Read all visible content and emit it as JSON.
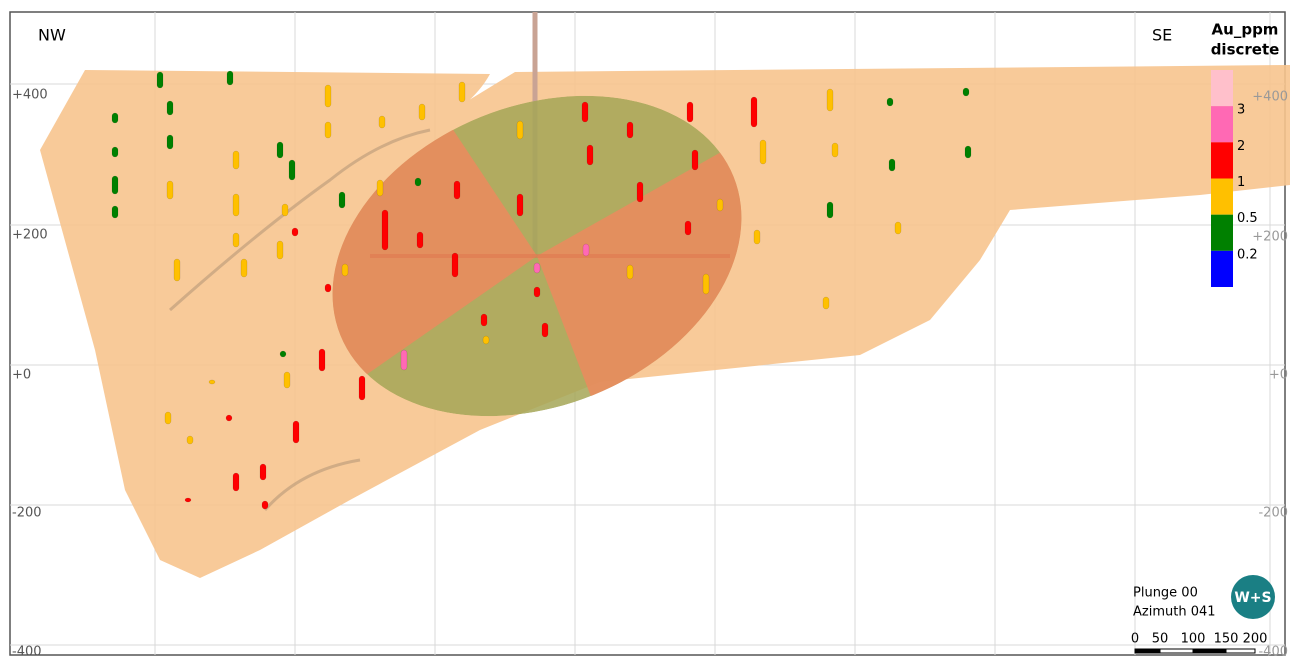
{
  "view": {
    "left": "NW",
    "right": "SE",
    "left_labels": [
      "+400",
      "+200",
      "+0",
      "-200",
      "-400"
    ],
    "right_labels": [
      "+400",
      "+200",
      "+0",
      "-200",
      "-400"
    ]
  },
  "legend": {
    "title": "Au_ppm",
    "subtitle": "discrete",
    "colors": [
      "#ffc0cb",
      "#ff69b4",
      "#ff0000",
      "#ffc000",
      "#008000",
      "#0000ff"
    ],
    "labels": [
      null,
      "3",
      "2",
      "1",
      "0.5",
      "0.2"
    ]
  },
  "view_info": {
    "plunge": "Plunge 00",
    "azimuth": "Azimuth 041"
  },
  "logo": "W+S",
  "scale": [
    "0",
    "50",
    "100",
    "150",
    "200"
  ]
}
